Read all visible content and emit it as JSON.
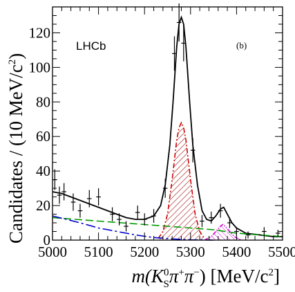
{
  "chart_data": {
    "type": "line",
    "xlabel_parts": [
      "m(K",
      "0",
      "S",
      "π",
      "+",
      "π",
      "−",
      ") [MeV/c",
      "2",
      "]"
    ],
    "ylabel_parts": [
      "Candidates / (10 MeV/c",
      "2",
      ")"
    ],
    "annotations": {
      "experiment": "LHCb",
      "panel": "(b)"
    },
    "xlim": [
      5000,
      5500
    ],
    "ylim": [
      0,
      135
    ],
    "x_ticks": [
      5000,
      5100,
      5200,
      5300,
      5400,
      5500
    ],
    "y_ticks": [
      0,
      20,
      40,
      60,
      80,
      100,
      120
    ],
    "data_points": [
      {
        "x": 5005,
        "y": 35,
        "ey": 6
      },
      {
        "x": 5015,
        "y": 26,
        "ey": 5
      },
      {
        "x": 5025,
        "y": 28,
        "ey": 5
      },
      {
        "x": 5045,
        "y": 22,
        "ey": 5
      },
      {
        "x": 5060,
        "y": 17,
        "ey": 4
      },
      {
        "x": 5080,
        "y": 24,
        "ey": 5
      },
      {
        "x": 5100,
        "y": 25,
        "ey": 5
      },
      {
        "x": 5130,
        "y": 15,
        "ey": 4
      },
      {
        "x": 5145,
        "y": 12,
        "ey": 3.5
      },
      {
        "x": 5160,
        "y": 8,
        "ey": 3
      },
      {
        "x": 5185,
        "y": 16,
        "ey": 4
      },
      {
        "x": 5200,
        "y": 12,
        "ey": 3.5
      },
      {
        "x": 5220,
        "y": 14,
        "ey": 4
      },
      {
        "x": 5245,
        "y": 30,
        "ey": 5.5
      },
      {
        "x": 5265,
        "y": 108,
        "ey": 10
      },
      {
        "x": 5275,
        "y": 126,
        "ey": 11
      },
      {
        "x": 5285,
        "y": 114,
        "ey": 10.5
      },
      {
        "x": 5305,
        "y": 52,
        "ey": 7
      },
      {
        "x": 5325,
        "y": 11,
        "ey": 3.5
      },
      {
        "x": 5345,
        "y": 13,
        "ey": 3.5
      },
      {
        "x": 5365,
        "y": 17,
        "ey": 4
      },
      {
        "x": 5385,
        "y": 10,
        "ey": 3
      },
      {
        "x": 5400,
        "y": 5,
        "ey": 2.5
      },
      {
        "x": 5425,
        "y": 3,
        "ey": 2
      },
      {
        "x": 5460,
        "y": 5,
        "ey": 2.5
      },
      {
        "x": 5490,
        "y": 4,
        "ey": 2
      }
    ],
    "curves": [
      {
        "style": "solid",
        "color": "#000000",
        "points": [
          [
            5000,
            28
          ],
          [
            5020,
            27
          ],
          [
            5040,
            25
          ],
          [
            5060,
            23
          ],
          [
            5080,
            21
          ],
          [
            5100,
            19
          ],
          [
            5120,
            17
          ],
          [
            5140,
            15
          ],
          [
            5160,
            13
          ],
          [
            5180,
            12
          ],
          [
            5200,
            12
          ],
          [
            5220,
            14
          ],
          [
            5235,
            20
          ],
          [
            5245,
            32
          ],
          [
            5255,
            55
          ],
          [
            5262,
            80
          ],
          [
            5270,
            112
          ],
          [
            5275,
            125
          ],
          [
            5280,
            129
          ],
          [
            5285,
            125
          ],
          [
            5290,
            112
          ],
          [
            5298,
            80
          ],
          [
            5305,
            55
          ],
          [
            5315,
            32
          ],
          [
            5325,
            17
          ],
          [
            5335,
            12
          ],
          [
            5345,
            11
          ],
          [
            5355,
            14
          ],
          [
            5365,
            18
          ],
          [
            5372,
            19
          ],
          [
            5380,
            15
          ],
          [
            5390,
            10
          ],
          [
            5400,
            7
          ],
          [
            5420,
            4
          ],
          [
            5450,
            3
          ],
          [
            5480,
            2
          ],
          [
            5500,
            2
          ]
        ]
      },
      {
        "style": "dash-dot",
        "color": "#cc0000",
        "points": [
          [
            5230,
            1
          ],
          [
            5240,
            5
          ],
          [
            5250,
            15
          ],
          [
            5260,
            35
          ],
          [
            5270,
            58
          ],
          [
            5275,
            65
          ],
          [
            5280,
            68
          ],
          [
            5285,
            65
          ],
          [
            5290,
            58
          ],
          [
            5300,
            35
          ],
          [
            5310,
            15
          ],
          [
            5320,
            5
          ],
          [
            5330,
            1
          ]
        ]
      },
      {
        "style": "dash",
        "color": "#009900",
        "points": [
          [
            5000,
            13
          ],
          [
            5050,
            12
          ],
          [
            5100,
            11
          ],
          [
            5150,
            10
          ],
          [
            5200,
            9
          ],
          [
            5250,
            8
          ],
          [
            5300,
            7
          ],
          [
            5350,
            6
          ],
          [
            5400,
            4
          ],
          [
            5450,
            3
          ],
          [
            5500,
            2
          ]
        ]
      },
      {
        "style": "long-dash-dot",
        "color": "#0000cc",
        "points": [
          [
            5000,
            14
          ],
          [
            5030,
            12
          ],
          [
            5060,
            10
          ],
          [
            5100,
            7
          ],
          [
            5140,
            5
          ],
          [
            5180,
            3
          ],
          [
            5220,
            1.5
          ],
          [
            5260,
            0.7
          ],
          [
            5300,
            0.2
          ],
          [
            5350,
            0
          ]
        ]
      },
      {
        "style": "dash-dot-dot",
        "color": "#cc00cc",
        "points": [
          [
            5330,
            0
          ],
          [
            5345,
            2
          ],
          [
            5355,
            5
          ],
          [
            5365,
            8
          ],
          [
            5370,
            9
          ],
          [
            5375,
            8
          ],
          [
            5385,
            5
          ],
          [
            5395,
            2
          ],
          [
            5410,
            0
          ]
        ]
      }
    ],
    "filled_regions": [
      {
        "curve_index": 1,
        "hatch_color": "#aa2222"
      },
      {
        "curve_index": 4,
        "hatch_color": "#cc00cc"
      }
    ]
  }
}
